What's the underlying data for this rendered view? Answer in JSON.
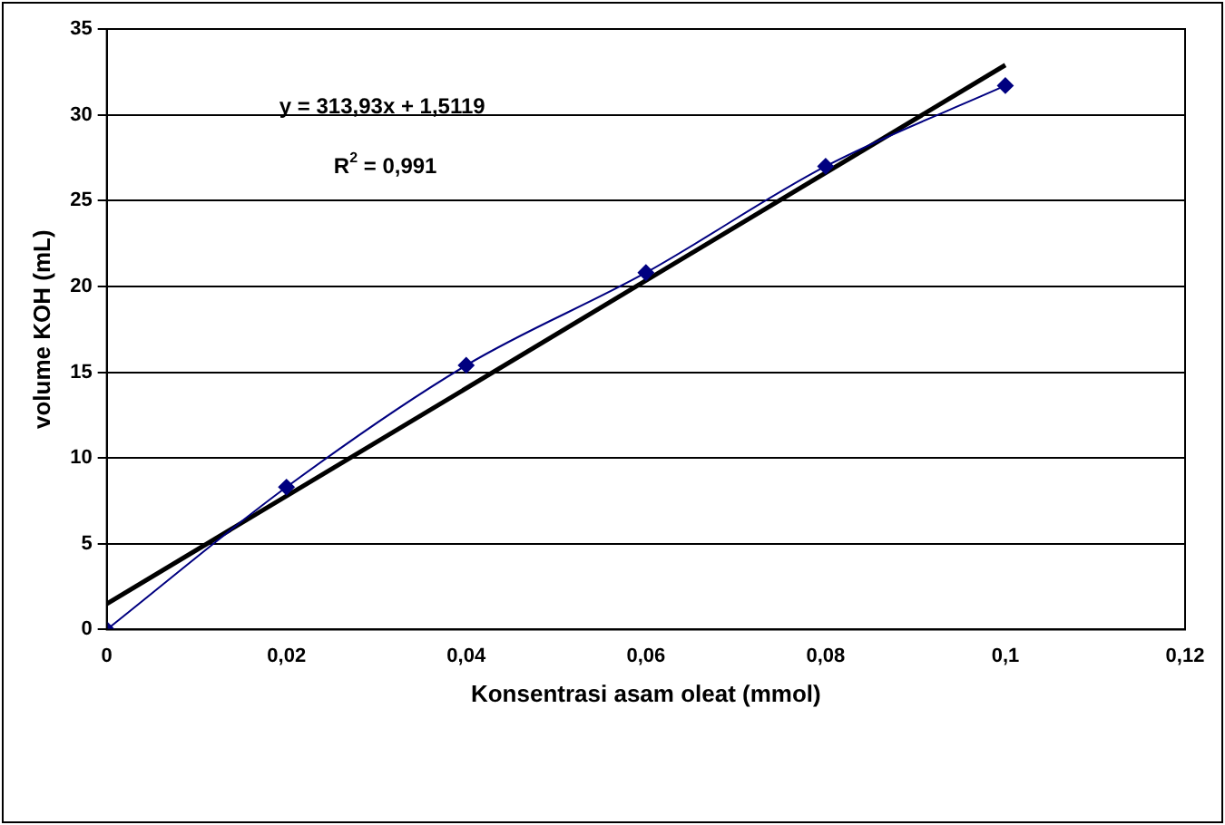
{
  "chart_data": {
    "type": "line",
    "xlabel": "Konsentrasi asam oleat (mmol)",
    "ylabel": "volume KOH (mL)",
    "annotations": [
      "y = 313,93x + 1,5119",
      "R$^{2}$ = 0,991"
    ],
    "series": [
      {
        "x": [
          0,
          0.02,
          0.04,
          0.06,
          0.08,
          0.1
        ],
        "values": [
          0,
          8.3,
          15.4,
          20.8,
          27,
          31.7
        ],
        "color": "#000080",
        "marker": "diamond"
      },
      {
        "x": [
          0,
          0.1
        ],
        "values": [
          1.5,
          32.9
        ],
        "color": "#000000",
        "marker": "none"
      }
    ],
    "xlim": [
      0,
      0.12
    ],
    "xticks": [
      {
        "value": 0,
        "label": "0"
      },
      {
        "value": 0.02,
        "label": "0,02"
      },
      {
        "value": 0.04,
        "label": "0,04"
      },
      {
        "value": 0.06,
        "label": "0,06"
      },
      {
        "value": 0.08,
        "label": "0,08"
      },
      {
        "value": 0.1,
        "label": "0,1"
      },
      {
        "value": 0.12,
        "label": "0,12"
      }
    ],
    "ylim": [
      0,
      35
    ],
    "yticks": [
      0,
      5,
      10,
      15,
      20,
      25,
      30,
      35
    ],
    "grid": "y",
    "legend": false
  }
}
